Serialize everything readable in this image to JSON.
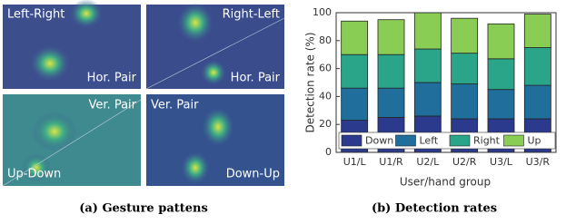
{
  "panels": [
    {
      "labels": [
        "Left-Right",
        "Hor. Pair"
      ]
    },
    {
      "labels": [
        "Right-Left",
        "Hor. Pair"
      ]
    },
    {
      "labels": [
        "Ver. Pair",
        "Up-Down"
      ]
    },
    {
      "labels": [
        "Ver. Pair",
        "Down-Up"
      ]
    }
  ],
  "captions": [
    "(a) Gesture pattens",
    "(b) Detection rates"
  ],
  "chart_data": {
    "type": "stacked_bar",
    "x_label": "User/hand group",
    "y_label": "Detection rate (%)",
    "categories": [
      "U1/L",
      "U1/R",
      "U2/L",
      "U2/R",
      "U3/L",
      "U3/R"
    ],
    "series": [
      {
        "name": "Down",
        "color": "#2b3a8c",
        "values": [
          23,
          25,
          26,
          24,
          24,
          24
        ]
      },
      {
        "name": "Left",
        "color": "#206e9c",
        "values": [
          23,
          21,
          24,
          25,
          21,
          24
        ]
      },
      {
        "name": "Right",
        "color": "#2ba58a",
        "values": [
          24,
          24,
          24,
          22,
          22,
          27
        ]
      },
      {
        "name": "Up",
        "color": "#8acd55",
        "values": [
          24,
          25,
          26,
          25,
          25,
          24
        ]
      }
    ],
    "ylim": [
      0,
      100
    ],
    "yticks": [
      0,
      20,
      40,
      60,
      80,
      100
    ]
  }
}
